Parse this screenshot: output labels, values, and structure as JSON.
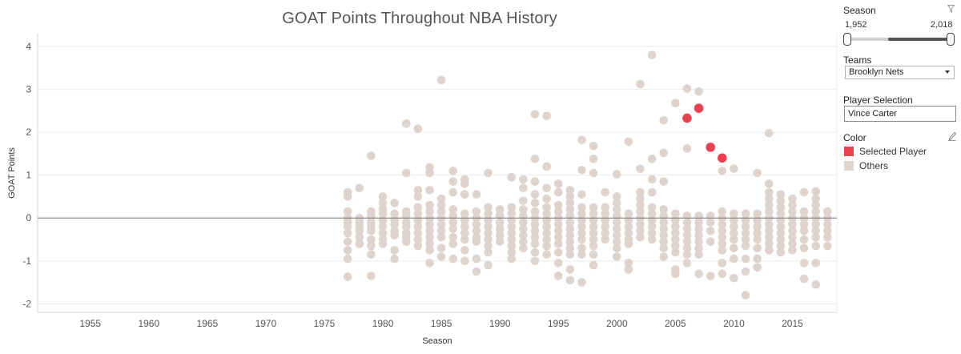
{
  "chart_data": {
    "type": "scatter",
    "title": "GOAT Points Throughout NBA History",
    "xlabel": "Season",
    "ylabel": "GOAT Points",
    "xlim": [
      1950.5,
      2018.8
    ],
    "ylim": [
      -2.2,
      4.3
    ],
    "xticks": [
      1955,
      1960,
      1965,
      1970,
      1975,
      1980,
      1985,
      1990,
      1995,
      2000,
      2005,
      2010,
      2015
    ],
    "yticks": [
      -2,
      -1,
      0,
      1,
      2,
      3,
      4
    ],
    "zero_line": true,
    "selected_points": [
      {
        "season": 2006,
        "goat_points": 2.33
      },
      {
        "season": 2007,
        "goat_points": 2.56
      },
      {
        "season": 2008,
        "goat_points": 1.65
      },
      {
        "season": 2009,
        "goat_points": 1.4
      }
    ],
    "others": [
      {
        "season": 1977,
        "values": [
          0.6,
          0.5,
          0.15,
          0.0,
          -0.1,
          -0.2,
          -0.35,
          -0.55,
          -0.75,
          -0.95,
          -1.37
        ]
      },
      {
        "season": 1978,
        "values": [
          0.7,
          0.0,
          -0.1,
          -0.2,
          -0.3,
          -0.45,
          -0.6
        ]
      },
      {
        "season": 1979,
        "values": [
          1.45,
          0.15,
          0.05,
          -0.1,
          -0.2,
          -0.3,
          -0.5,
          -0.65,
          -0.85,
          -1.35
        ]
      },
      {
        "season": 1980,
        "values": [
          0.5,
          0.35,
          0.2,
          0.1,
          -0.05,
          -0.2,
          -0.35,
          -0.5,
          -0.6
        ]
      },
      {
        "season": 1981,
        "values": [
          0.35,
          0.1,
          -0.05,
          -0.15,
          -0.3,
          -0.4,
          -0.75,
          -0.95
        ]
      },
      {
        "season": 1982,
        "values": [
          2.2,
          1.05,
          0.15,
          0.05,
          -0.1,
          -0.2,
          -0.35,
          -0.45,
          -0.55
        ]
      },
      {
        "season": 1983,
        "values": [
          2.08,
          0.65,
          0.5,
          0.25,
          0.1,
          -0.05,
          -0.2,
          -0.35,
          -0.5,
          -0.65
        ]
      },
      {
        "season": 1984,
        "values": [
          1.18,
          1.05,
          0.65,
          0.3,
          0.15,
          0.0,
          -0.15,
          -0.3,
          -0.45,
          -0.6,
          -0.75,
          -1.05
        ]
      },
      {
        "season": 1985,
        "values": [
          3.22,
          0.45,
          0.3,
          0.15,
          0.0,
          -0.15,
          -0.3,
          -0.45,
          -0.7,
          -0.9
        ]
      },
      {
        "season": 1986,
        "values": [
          1.1,
          0.85,
          0.6,
          0.2,
          0.05,
          -0.1,
          -0.25,
          -0.45,
          -0.6,
          -0.95
        ]
      },
      {
        "season": 1987,
        "values": [
          0.9,
          0.8,
          0.55,
          0.1,
          -0.05,
          -0.2,
          -0.35,
          -0.5,
          -0.75,
          -1.0
        ]
      },
      {
        "season": 1988,
        "values": [
          0.55,
          0.15,
          0.0,
          -0.15,
          -0.3,
          -0.45,
          -0.55,
          -0.95,
          -1.25
        ]
      },
      {
        "season": 1989,
        "values": [
          1.05,
          0.25,
          0.1,
          -0.05,
          -0.2,
          -0.35,
          -0.5,
          -0.65,
          -0.8,
          -1.1
        ]
      },
      {
        "season": 1990,
        "values": [
          0.2,
          0.05,
          -0.1,
          -0.25,
          -0.4,
          -0.55
        ]
      },
      {
        "season": 1991,
        "values": [
          0.95,
          0.25,
          0.1,
          -0.05,
          -0.2,
          -0.35,
          -0.5,
          -0.65,
          -0.8,
          -0.95
        ]
      },
      {
        "season": 1992,
        "values": [
          0.9,
          0.7,
          0.4,
          0.2,
          0.05,
          -0.1,
          -0.25,
          -0.4,
          -0.55,
          -0.7
        ]
      },
      {
        "season": 1993,
        "values": [
          2.42,
          1.38,
          0.85,
          0.55,
          0.35,
          0.15,
          0.0,
          -0.15,
          -0.3,
          -0.45,
          -0.6,
          -0.8,
          -1.0
        ]
      },
      {
        "season": 1994,
        "values": [
          2.38,
          1.2,
          0.7,
          0.45,
          0.25,
          0.1,
          -0.05,
          -0.2,
          -0.35,
          -0.5,
          -0.65,
          -0.85
        ]
      },
      {
        "season": 1995,
        "values": [
          0.8,
          0.6,
          0.3,
          0.15,
          0.0,
          -0.15,
          -0.3,
          -0.45,
          -0.6,
          -0.8,
          -1.05,
          -1.35
        ]
      },
      {
        "season": 1996,
        "values": [
          0.65,
          0.5,
          0.35,
          0.2,
          0.05,
          -0.1,
          -0.25,
          -0.4,
          -0.55,
          -0.7,
          -0.85,
          -1.2,
          -1.45
        ]
      },
      {
        "season": 1997,
        "values": [
          1.82,
          1.12,
          0.55,
          0.25,
          0.1,
          -0.05,
          -0.2,
          -0.35,
          -0.5,
          -0.7,
          -0.85,
          -1.5
        ]
      },
      {
        "season": 1998,
        "values": [
          1.68,
          1.38,
          1.05,
          0.25,
          0.1,
          -0.05,
          -0.2,
          -0.35,
          -0.5,
          -0.65,
          -0.85,
          -1.1
        ]
      },
      {
        "season": 1999,
        "values": [
          0.6,
          0.25,
          0.1,
          -0.05,
          -0.2,
          -0.35,
          -0.5
        ]
      },
      {
        "season": 2000,
        "values": [
          1.02,
          0.5,
          0.35,
          0.2,
          0.05,
          -0.1,
          -0.25,
          -0.4,
          -0.55,
          -0.7,
          -0.9
        ]
      },
      {
        "season": 2001,
        "values": [
          1.78,
          0.1,
          -0.05,
          -0.2,
          -0.35,
          -0.5,
          -0.6,
          -1.05,
          -1.2
        ]
      },
      {
        "season": 2002,
        "values": [
          3.12,
          1.15,
          0.6,
          0.45,
          0.3,
          0.15,
          0.0,
          -0.15,
          -0.3,
          -0.45
        ]
      },
      {
        "season": 2003,
        "values": [
          3.8,
          1.38,
          0.9,
          0.6,
          0.25,
          0.1,
          -0.05,
          -0.2,
          -0.35,
          -0.5
        ]
      },
      {
        "season": 2004,
        "values": [
          2.28,
          1.52,
          0.85,
          0.2,
          0.05,
          -0.1,
          -0.25,
          -0.4,
          -0.55,
          -0.7,
          -0.9
        ]
      },
      {
        "season": 2005,
        "values": [
          2.68,
          0.1,
          -0.05,
          -0.2,
          -0.35,
          -0.5,
          -0.65,
          -0.8,
          -1.2,
          -1.3
        ]
      },
      {
        "season": 2006,
        "values": [
          3.02,
          1.62,
          0.05,
          -0.1,
          -0.25,
          -0.4,
          -0.55,
          -0.7,
          -0.85,
          -1.05
        ]
      },
      {
        "season": 2007,
        "values": [
          2.95,
          0.05,
          -0.1,
          -0.25,
          -0.4,
          -0.55,
          -0.7,
          -0.85,
          -1.3
        ]
      },
      {
        "season": 2008,
        "values": [
          0.05,
          -0.1,
          -0.3,
          -0.55,
          -1.35
        ]
      },
      {
        "season": 2009,
        "values": [
          1.1,
          0.15,
          0.0,
          -0.15,
          -0.3,
          -0.45,
          -0.6,
          -0.75,
          -1.05,
          -1.3
        ]
      },
      {
        "season": 2010,
        "values": [
          1.15,
          0.1,
          -0.05,
          -0.2,
          -0.35,
          -0.5,
          -0.7,
          -0.95,
          -1.4
        ]
      },
      {
        "season": 2011,
        "values": [
          0.1,
          -0.05,
          -0.2,
          -0.35,
          -0.5,
          -0.65,
          -0.95,
          -1.25,
          -1.8
        ]
      },
      {
        "season": 2012,
        "values": [
          1.05,
          0.1,
          -0.05,
          -0.2,
          -0.35,
          -0.5,
          -0.7,
          -0.95,
          -1.15
        ]
      },
      {
        "season": 2013,
        "values": [
          1.98,
          0.8,
          0.6,
          0.45,
          0.3,
          0.15,
          0.0,
          -0.15,
          -0.3,
          -0.45,
          -0.6,
          -0.75
        ]
      },
      {
        "season": 2014,
        "values": [
          0.55,
          0.4,
          0.25,
          0.1,
          -0.05,
          -0.2,
          -0.35,
          -0.5,
          -0.65,
          -0.8
        ]
      },
      {
        "season": 2015,
        "values": [
          0.45,
          0.3,
          0.15,
          0.0,
          -0.15,
          -0.3,
          -0.45,
          -0.6,
          -0.75
        ]
      },
      {
        "season": 2016,
        "values": [
          0.6,
          0.15,
          0.0,
          -0.15,
          -0.3,
          -0.5,
          -0.7,
          -1.05,
          -1.42
        ]
      },
      {
        "season": 2017,
        "values": [
          0.62,
          0.45,
          0.3,
          0.15,
          0.0,
          -0.15,
          -0.3,
          -0.45,
          -0.65,
          -1.05,
          -1.55
        ]
      },
      {
        "season": 2018,
        "values": [
          0.15,
          0.0,
          -0.15,
          -0.3,
          -0.45,
          -0.65
        ]
      }
    ]
  },
  "colors": {
    "selected": "#e8414f",
    "others": "#dfd3ce",
    "gridline": "#ebebeb",
    "zero_line": "#8a8a8a"
  },
  "sidebar": {
    "season": {
      "title": "Season",
      "min_label": "1,952",
      "max_label": "2,018",
      "filter_icon": "funnel-icon"
    },
    "teams": {
      "title": "Teams",
      "selected": "Brooklyn Nets"
    },
    "player": {
      "title": "Player Selection",
      "value": "Vince Carter"
    },
    "color_legend": {
      "title": "Color",
      "edit_icon": "pencil-icon",
      "items": [
        {
          "label": "Selected Player",
          "color": "#e8414f"
        },
        {
          "label": "Others",
          "color": "#dfd3ce"
        }
      ]
    }
  }
}
